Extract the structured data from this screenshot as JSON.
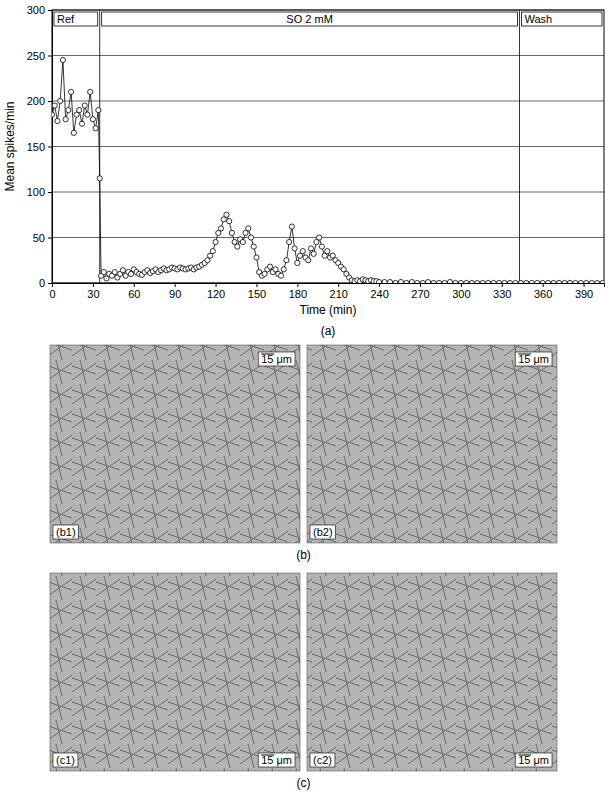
{
  "chart_data": {
    "type": "line",
    "x_label": "Time (min)",
    "y_label": "Mean spikes/min",
    "caption": "(a)",
    "marker": "circle-open",
    "line_style": "solid",
    "color": "#000000",
    "grid": true,
    "xlim": [
      0,
      405
    ],
    "ylim": [
      0,
      300
    ],
    "xticks": [
      0,
      30,
      60,
      90,
      120,
      150,
      180,
      210,
      240,
      270,
      300,
      330,
      360,
      390
    ],
    "yticks": [
      0,
      50,
      100,
      150,
      200,
      250,
      300
    ],
    "phases": [
      {
        "label": "Ref",
        "start": 0,
        "end": 35
      },
      {
        "label": "SO 2 mM",
        "start": 35,
        "end": 343
      },
      {
        "label": "Wash",
        "start": 343,
        "end": 405
      }
    ],
    "x": [
      0,
      2,
      4,
      6,
      8,
      10,
      12,
      14,
      16,
      18,
      20,
      22,
      24,
      26,
      28,
      30,
      32,
      34,
      35,
      36,
      38,
      40,
      42,
      44,
      46,
      48,
      50,
      52,
      54,
      56,
      58,
      60,
      62,
      64,
      66,
      68,
      70,
      72,
      74,
      76,
      78,
      80,
      82,
      84,
      86,
      88,
      90,
      92,
      94,
      96,
      98,
      100,
      102,
      104,
      106,
      108,
      110,
      112,
      114,
      116,
      118,
      120,
      122,
      124,
      126,
      128,
      130,
      132,
      134,
      136,
      138,
      140,
      142,
      144,
      146,
      148,
      150,
      152,
      154,
      156,
      158,
      160,
      162,
      164,
      166,
      168,
      170,
      172,
      174,
      176,
      178,
      180,
      182,
      184,
      186,
      188,
      190,
      192,
      194,
      196,
      198,
      200,
      202,
      204,
      206,
      208,
      210,
      212,
      214,
      216,
      218,
      220,
      222,
      224,
      226,
      228,
      230,
      232,
      234,
      236,
      238,
      240,
      244,
      248,
      252,
      256,
      260,
      264,
      268,
      272,
      276,
      280,
      284,
      288,
      292,
      296,
      300,
      304,
      308,
      312,
      316,
      320,
      324,
      328,
      332,
      336,
      340,
      344,
      348,
      352,
      356,
      360,
      364,
      368,
      372,
      376,
      380,
      384,
      388,
      392,
      396,
      400,
      404
    ],
    "values": [
      185,
      195,
      178,
      200,
      245,
      180,
      190,
      210,
      165,
      185,
      190,
      175,
      195,
      185,
      210,
      180,
      170,
      190,
      115,
      8,
      12,
      5,
      10,
      8,
      12,
      6,
      10,
      14,
      8,
      12,
      10,
      15,
      12,
      10,
      9,
      12,
      14,
      11,
      13,
      15,
      12,
      14,
      16,
      14,
      15,
      17,
      16,
      15,
      17,
      16,
      15,
      16,
      17,
      15,
      17,
      18,
      20,
      22,
      25,
      30,
      35,
      45,
      55,
      60,
      70,
      75,
      68,
      55,
      45,
      40,
      48,
      45,
      55,
      60,
      50,
      40,
      28,
      12,
      8,
      10,
      15,
      18,
      12,
      15,
      10,
      8,
      15,
      25,
      45,
      62,
      38,
      22,
      30,
      35,
      28,
      25,
      38,
      32,
      45,
      50,
      40,
      30,
      35,
      28,
      30,
      25,
      22,
      18,
      15,
      10,
      6,
      3,
      2,
      3,
      2,
      4,
      3,
      2,
      3,
      2,
      2,
      1,
      1,
      1,
      0,
      1,
      0,
      1,
      0,
      0,
      1,
      0,
      0,
      0,
      1,
      0,
      0,
      0,
      0,
      0,
      0,
      0,
      0,
      0,
      0,
      0,
      0,
      0,
      0,
      0,
      0,
      0,
      0,
      0,
      0,
      0,
      0,
      0,
      0,
      0,
      0,
      0,
      0
    ]
  },
  "figure": {
    "groups": [
      {
        "caption": "(b)",
        "panels": [
          {
            "label": "(b1)",
            "scale_bar": "15 μm"
          },
          {
            "label": "(b2)",
            "scale_bar": "15 μm"
          }
        ]
      },
      {
        "caption": "(c)",
        "panels": [
          {
            "label": "(c1)",
            "scale_bar": "15 μm"
          },
          {
            "label": "(c2)",
            "scale_bar": "15 μm"
          }
        ]
      }
    ]
  }
}
